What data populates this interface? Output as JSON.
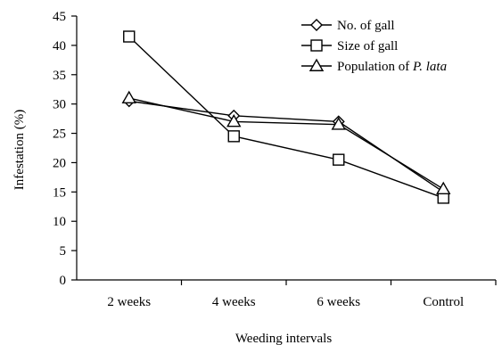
{
  "chart_data": {
    "type": "line",
    "categories": [
      "2 weeks",
      "4 weeks",
      "6 weeks",
      "Control"
    ],
    "xlabel": "Weeding intervals",
    "ylabel": "Infestation (%)",
    "ylim": [
      0,
      45
    ],
    "yticks": [
      0,
      5,
      10,
      15,
      20,
      25,
      30,
      35,
      40,
      45
    ],
    "grid": false,
    "legend_position": "top-right",
    "series": [
      {
        "name": "No. of gall",
        "marker": "diamond",
        "values": [
          30.5,
          28.0,
          27.0,
          15.0
        ]
      },
      {
        "name": "Size of gall",
        "marker": "square",
        "values": [
          41.5,
          24.5,
          20.5,
          14.0
        ]
      },
      {
        "name": "Population of P. lata",
        "name_plain": "Population of ",
        "name_italic": "P. lata",
        "marker": "triangle",
        "values": [
          31.0,
          27.0,
          26.5,
          15.5
        ]
      }
    ]
  }
}
